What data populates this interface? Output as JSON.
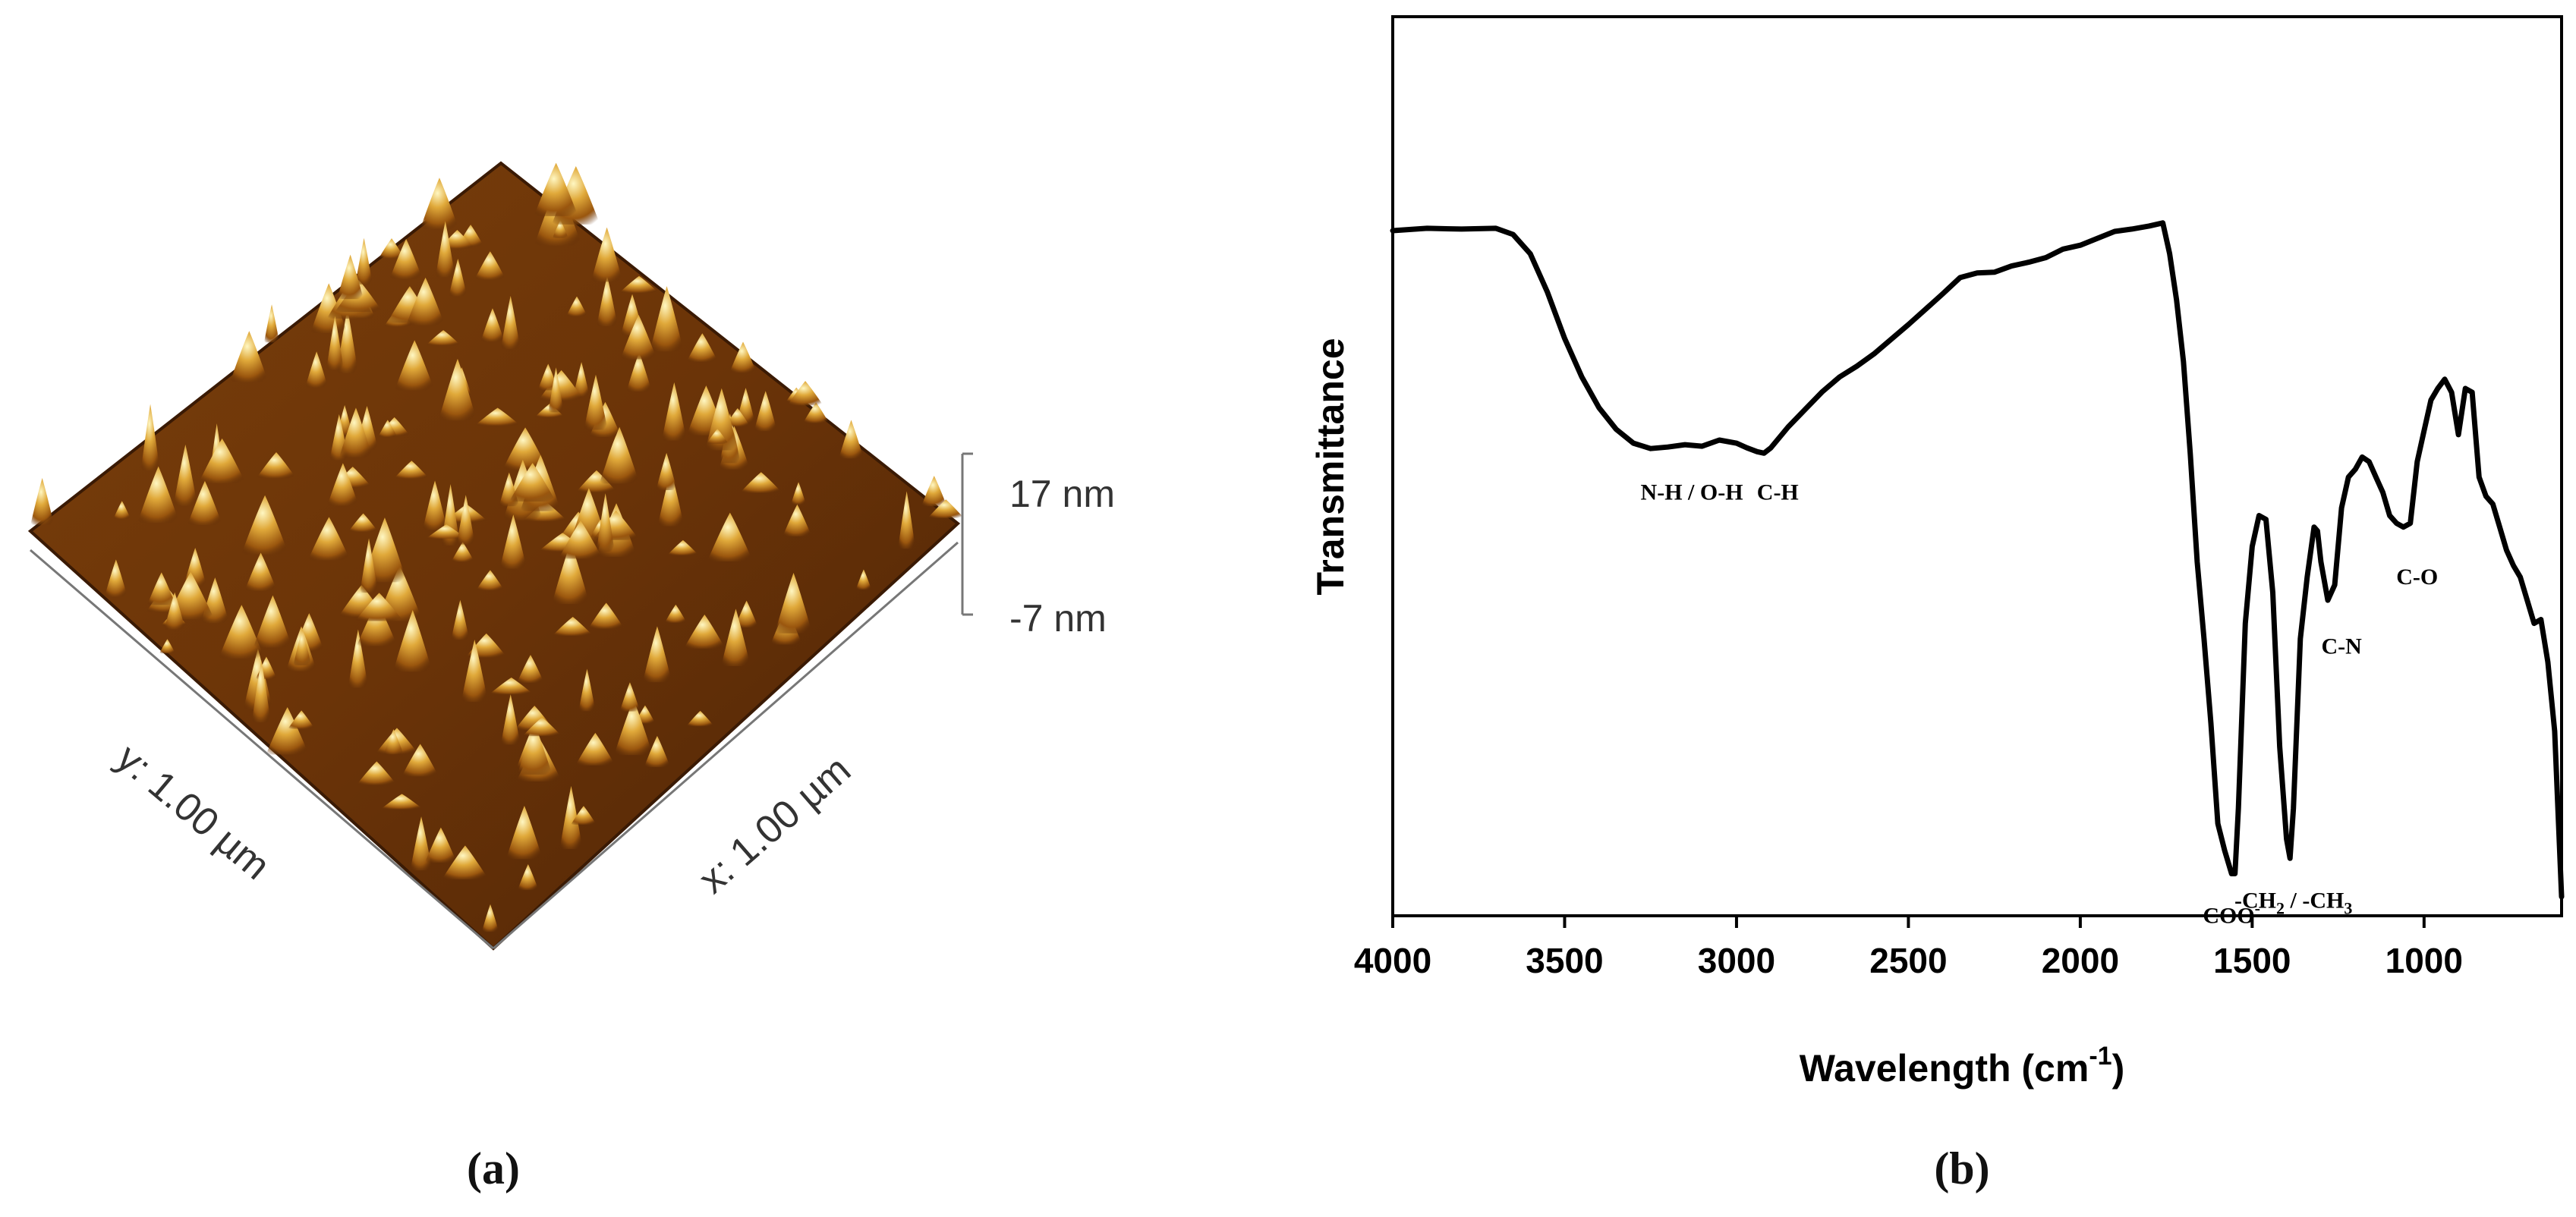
{
  "panel_a": {
    "label": "(a)",
    "z_top": "17 nm",
    "z_bottom": "-7 nm",
    "x_axis": "x: 1.00 µm",
    "y_axis": "y: 1.00 µm",
    "colors": {
      "low": "#4a2206",
      "mid": "#a5620f",
      "high": "#fff7c2"
    }
  },
  "panel_b": {
    "label": "(b)"
  },
  "chart_data": {
    "type": "line",
    "xlabel": "Wavelength (cm-1)",
    "ylabel": "Transmittance",
    "xlim": [
      4000,
      600
    ],
    "ylim": [
      0,
      100
    ],
    "x_reversed": true,
    "xticks": [
      4000,
      3500,
      3000,
      2500,
      2000,
      1500,
      1000
    ],
    "y_ticks_shown": false,
    "grid": false,
    "series": [
      {
        "color": "#000000",
        "x": [
          4000,
          3900,
          3800,
          3700,
          3650,
          3600,
          3550,
          3500,
          3450,
          3400,
          3350,
          3300,
          3250,
          3200,
          3150,
          3100,
          3050,
          3000,
          2970,
          2940,
          2920,
          2900,
          2850,
          2800,
          2750,
          2700,
          2650,
          2600,
          2550,
          2500,
          2450,
          2400,
          2350,
          2300,
          2250,
          2200,
          2150,
          2100,
          2050,
          2000,
          1950,
          1900,
          1850,
          1800,
          1760,
          1740,
          1720,
          1700,
          1680,
          1660,
          1640,
          1620,
          1600,
          1580,
          1560,
          1550,
          1540,
          1520,
          1500,
          1480,
          1460,
          1440,
          1420,
          1400,
          1390,
          1380,
          1360,
          1340,
          1320,
          1310,
          1300,
          1280,
          1260,
          1240,
          1220,
          1200,
          1180,
          1160,
          1140,
          1120,
          1100,
          1080,
          1060,
          1040,
          1020,
          1000,
          980,
          960,
          940,
          920,
          900,
          880,
          860,
          840,
          820,
          800,
          780,
          760,
          740,
          720,
          700,
          680,
          660,
          640,
          620,
          600
        ],
        "y": [
          87,
          87.3,
          87.2,
          87.3,
          86.5,
          84,
          79,
          73,
          68,
          64,
          61.2,
          59.4,
          58.7,
          58.9,
          59.2,
          59.0,
          59.8,
          59.4,
          58.8,
          58.3,
          58.1,
          58.8,
          61.5,
          63.8,
          66.1,
          68.0,
          69.4,
          71.0,
          72.9,
          74.8,
          76.8,
          78.8,
          80.9,
          81.5,
          81.6,
          82.4,
          82.9,
          83.5,
          84.6,
          85.1,
          86.0,
          86.9,
          87.2,
          87.6,
          88.0,
          84.0,
          78.0,
          70.0,
          58.0,
          44.0,
          34.0,
          23.0,
          10.0,
          6.5,
          3.5,
          3.5,
          12.0,
          36.0,
          46.0,
          50.0,
          49.5,
          40.0,
          20.0,
          8.0,
          5.5,
          12.0,
          34.0,
          42.0,
          48.5,
          48.0,
          44.0,
          39.0,
          41.0,
          51.0,
          55.0,
          56.0,
          57.6,
          57.0,
          55.0,
          53.0,
          50.0,
          49.0,
          48.5,
          49.0,
          57.0,
          61.0,
          65.0,
          66.5,
          67.7,
          66.0,
          60.5,
          66.5,
          66.0,
          55.0,
          52.5,
          51.5,
          48.5,
          45.5,
          43.5,
          42.0,
          39.0,
          36.0,
          36.5,
          31.0,
          22.0,
          0.5
        ]
      }
    ],
    "annotations": [
      {
        "text": "N-H / O-H",
        "x": 3130,
        "y": 58
      },
      {
        "text": "C-H",
        "x": 2880,
        "y": 58
      },
      {
        "text": "COO",
        "sup": "-",
        "x": 1560,
        "y": 3
      },
      {
        "text": "-CH",
        "sub": "2",
        "mid": " / -CH",
        "sub2": "3",
        "x": 1380,
        "y": 5
      },
      {
        "text": "C-N",
        "x": 1240,
        "y": 38
      },
      {
        "text": "C-O",
        "x": 1020,
        "y": 47
      }
    ]
  }
}
